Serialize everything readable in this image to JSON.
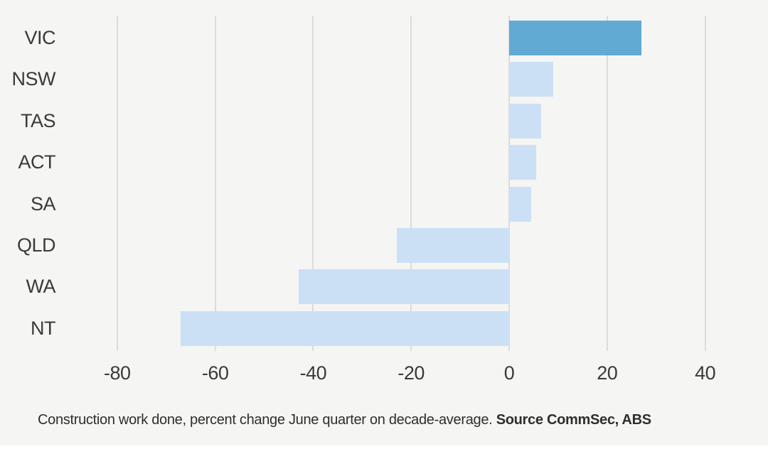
{
  "chart_data": {
    "type": "bar",
    "orientation": "horizontal",
    "categories": [
      "VIC",
      "NSW",
      "TAS",
      "ACT",
      "SA",
      "QLD",
      "WA",
      "NT"
    ],
    "values": [
      27,
      9,
      6.5,
      5.5,
      4.5,
      -23,
      -43,
      -67
    ],
    "x_ticks": [
      -80,
      -60,
      -40,
      -20,
      0,
      20,
      40
    ],
    "x_tick_labels": [
      "-80",
      "-60",
      "-40",
      "-20",
      "0",
      "20",
      "40"
    ],
    "xlim": [
      -89,
      50
    ],
    "grid": "vertical-gridlines-on",
    "legend": "none",
    "highlight_category": "VIC",
    "colors": {
      "highlight_bar": "#60AAD4",
      "default_bar": "#CBE0F5",
      "gridline": "#DCDCDC",
      "background": "#F5F5F3",
      "label_text": "#3A3A3A"
    },
    "title": "",
    "xlabel": "",
    "ylabel": ""
  },
  "caption": {
    "text": "Construction work done, percent change June quarter on decade-average.",
    "source": "Source CommSec, ABS"
  }
}
